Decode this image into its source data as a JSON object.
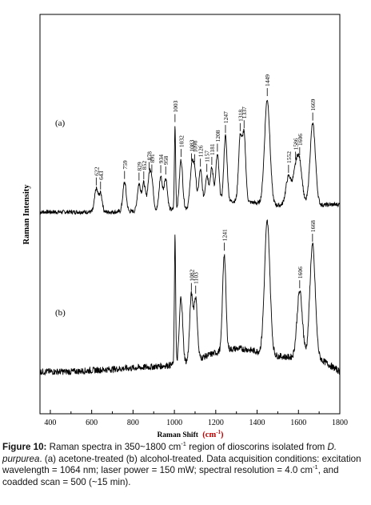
{
  "chart_data": {
    "type": "line",
    "xlabel": "Raman Shift",
    "xunit": "cm",
    "xunit_exp": "-1",
    "ylabel": "Raman Intensity",
    "xlim": [
      350,
      1800
    ],
    "xticks": [
      400,
      600,
      800,
      1000,
      1200,
      1400,
      1600,
      1800
    ],
    "grid": false,
    "series": [
      {
        "name": "(a)",
        "peaks": [
          {
            "x": 622,
            "label": "622",
            "h": 0.27
          },
          {
            "x": 643,
            "label": "643",
            "h": 0.22
          },
          {
            "x": 759,
            "label": "759",
            "h": 0.35
          },
          {
            "x": 829,
            "label": "829",
            "h": 0.32
          },
          {
            "x": 852,
            "label": "852",
            "h": 0.33
          },
          {
            "x": 878,
            "label": "878",
            "h": 0.36
          },
          {
            "x": 891,
            "label": "891",
            "h": 0.32
          },
          {
            "x": 934,
            "label": "934",
            "h": 0.4
          },
          {
            "x": 958,
            "label": "958",
            "h": 0.38
          },
          {
            "x": 1003,
            "label": "1003",
            "h": 1.0
          },
          {
            "x": 1032,
            "label": "1032",
            "h": 0.58
          },
          {
            "x": 1083,
            "label": "1083",
            "h": 0.44
          },
          {
            "x": 1098,
            "label": "1098",
            "h": 0.42
          },
          {
            "x": 1126,
            "label": "1126",
            "h": 0.43
          },
          {
            "x": 1157,
            "label": "1157",
            "h": 0.35
          },
          {
            "x": 1181,
            "label": "1181",
            "h": 0.42
          },
          {
            "x": 1208,
            "label": "1208",
            "h": 0.57
          },
          {
            "x": 1247,
            "label": "1247",
            "h": 0.78
          },
          {
            "x": 1318,
            "label": "1318",
            "h": 0.75
          },
          {
            "x": 1337,
            "label": "1337",
            "h": 0.79
          },
          {
            "x": 1449,
            "label": "1449",
            "h": 1.25
          },
          {
            "x": 1552,
            "label": "1552",
            "h": 0.34
          },
          {
            "x": 1586,
            "label": "1586",
            "h": 0.36
          },
          {
            "x": 1606,
            "label": "1606",
            "h": 0.45
          },
          {
            "x": 1669,
            "label": "1669",
            "h": 0.97
          }
        ]
      },
      {
        "name": "(b)",
        "peaks": [
          {
            "x": 1003,
            "label": "",
            "h": 1.0
          },
          {
            "x": 1032,
            "label": "",
            "h": 0.5
          },
          {
            "x": 1082,
            "label": "1082",
            "h": 0.49
          },
          {
            "x": 1103,
            "label": "1103",
            "h": 0.46
          },
          {
            "x": 1241,
            "label": "1241",
            "h": 0.73
          },
          {
            "x": 1449,
            "label": "",
            "h": 1.0
          },
          {
            "x": 1606,
            "label": "1606",
            "h": 0.5
          },
          {
            "x": 1668,
            "label": "1668",
            "h": 0.85
          }
        ]
      }
    ]
  },
  "caption": {
    "figure_label": "Figure 10:",
    "t1": " Raman spectra in 350~1800 cm",
    "sup": "-1",
    "t2": " region of dioscorins isolated from ",
    "species": "D. purpurea",
    "t3": ". (a) acetone-treated (b) alcohol-treated. Data acquisition conditions: excitation wavelength = 1064 nm; laser power = 150 mW; spectral resolution = 4.0 cm",
    "sup2": "-1",
    "t4": ", and coadded scan = 500 (~15 min)."
  }
}
